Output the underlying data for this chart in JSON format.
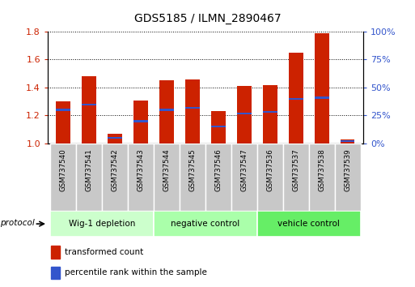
{
  "title": "GDS5185 / ILMN_2890467",
  "samples": [
    "GSM737540",
    "GSM737541",
    "GSM737542",
    "GSM737543",
    "GSM737544",
    "GSM737545",
    "GSM737546",
    "GSM737547",
    "GSM737536",
    "GSM737537",
    "GSM737538",
    "GSM737539"
  ],
  "red_values": [
    1.3,
    1.48,
    1.07,
    1.31,
    1.45,
    1.46,
    1.23,
    1.41,
    1.42,
    1.65,
    1.79,
    1.03
  ],
  "blue_pcts": [
    30,
    35,
    5,
    20,
    30,
    32,
    15,
    27,
    28,
    40,
    41,
    2
  ],
  "red_color": "#cc2200",
  "blue_color": "#3355cc",
  "ylim_left": [
    1.0,
    1.8
  ],
  "ylim_right": [
    0,
    100
  ],
  "yticks_left": [
    1.0,
    1.2,
    1.4,
    1.6,
    1.8
  ],
  "yticks_right": [
    0,
    25,
    50,
    75,
    100
  ],
  "ytick_labels_right": [
    "0%",
    "25%",
    "50%",
    "75%",
    "100%"
  ],
  "bar_width": 0.55,
  "groups": [
    {
      "label": "Wig-1 depletion",
      "start": 0,
      "end": 4,
      "color": "#ccffcc"
    },
    {
      "label": "negative control",
      "start": 4,
      "end": 8,
      "color": "#aaffaa"
    },
    {
      "label": "vehicle control",
      "start": 8,
      "end": 12,
      "color": "#66ee66"
    }
  ],
  "protocol_label": "protocol",
  "legend_red": "transformed count",
  "legend_blue": "percentile rank within the sample",
  "tick_color_left": "#cc2200",
  "tick_color_right": "#3355cc",
  "xlabel_bg": "#c8c8c8",
  "title_fontsize": 10
}
